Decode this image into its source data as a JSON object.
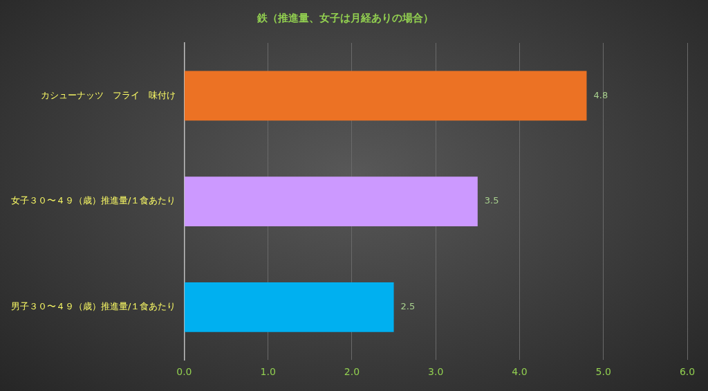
{
  "chart_data": {
    "type": "bar",
    "orientation": "horizontal",
    "title": "鉄（推進量、女子は月経ありの場合）",
    "categories": [
      "カシューナッツ　フライ　味付け",
      "女子３０〜４９（歳）推進量/１食あたり",
      "男子３０〜４９（歳）推進量/１食あたり"
    ],
    "values": [
      4.8,
      3.5,
      2.5
    ],
    "colors": [
      "#ec7224",
      "#cc99ff",
      "#00b0f0"
    ],
    "xlim": [
      0,
      6
    ],
    "xticks": [
      {
        "value": 0,
        "label": "0.0"
      },
      {
        "value": 1,
        "label": "1.0"
      },
      {
        "value": 2,
        "label": "2.0"
      },
      {
        "value": 3,
        "label": "3.0"
      },
      {
        "value": 4,
        "label": "4.0"
      },
      {
        "value": 5,
        "label": "5.0"
      },
      {
        "value": 6,
        "label": "6.0"
      }
    ],
    "grid": "x",
    "legend": false,
    "data_labels": true
  }
}
